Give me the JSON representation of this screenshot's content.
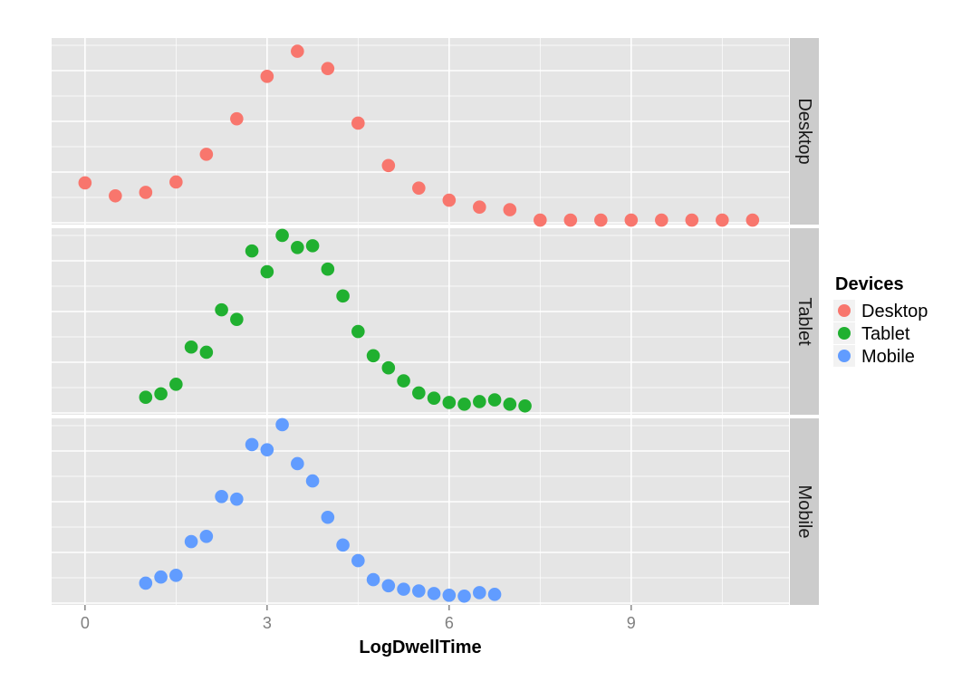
{
  "chart_data": {
    "type": "scatter",
    "facet_by": "device",
    "xlabel": "LogDwellTime",
    "ylabel": "",
    "xlim": [
      -0.55,
      11.6
    ],
    "xticks": [
      0,
      3,
      6,
      9
    ],
    "legend": {
      "title": "Devices",
      "position": "right",
      "entries": [
        "Desktop",
        "Tablet",
        "Mobile"
      ]
    },
    "colors": {
      "Desktop": "#F8766D",
      "Tablet": "#20B030",
      "Mobile": "#619CFF",
      "panel_bg": "#E5E5E5",
      "strip_bg": "#CCCCCC",
      "grid": "#FFFFFF"
    },
    "grid": true,
    "series": [
      {
        "name": "Desktop",
        "ylim": [
          0,
          0.205
        ],
        "x": [
          0,
          0.5,
          1,
          1.5,
          2,
          2.5,
          3,
          3.5,
          4,
          4.5,
          5,
          5.5,
          6,
          6.5,
          7,
          7.5,
          8,
          8.5,
          9,
          9.5,
          10,
          10.5,
          11
        ],
        "y": [
          0.044,
          0.029,
          0.033,
          0.045,
          0.077,
          0.118,
          0.167,
          0.196,
          0.176,
          0.113,
          0.064,
          0.038,
          0.024,
          0.016,
          0.013,
          0.001,
          0.001,
          0.001,
          0.001,
          0.001,
          0.001,
          0.001,
          0.001
        ]
      },
      {
        "name": "Tablet",
        "ylim": [
          0,
          0.205
        ],
        "x": [
          1,
          1.25,
          1.5,
          1.75,
          2,
          2.25,
          2.5,
          2.75,
          3,
          3.25,
          3.5,
          3.75,
          4,
          4.25,
          4.5,
          4.75,
          5,
          5.25,
          5.5,
          5.75,
          6,
          6.25,
          6.5,
          6.75,
          7,
          7.25
        ],
        "y": [
          0.016,
          0.02,
          0.031,
          0.074,
          0.068,
          0.117,
          0.106,
          0.185,
          0.161,
          0.203,
          0.189,
          0.191,
          0.164,
          0.133,
          0.092,
          0.064,
          0.05,
          0.035,
          0.021,
          0.015,
          0.01,
          0.008,
          0.011,
          0.013,
          0.008,
          0.006
        ]
      },
      {
        "name": "Mobile",
        "ylim": [
          0,
          0.205
        ],
        "x": [
          1,
          1.25,
          1.5,
          1.75,
          2,
          2.25,
          2.5,
          2.75,
          3,
          3.25,
          3.5,
          3.75,
          4,
          4.25,
          4.5,
          4.75,
          5,
          5.25,
          5.5,
          5.75,
          6,
          6.25,
          6.5,
          6.75
        ],
        "y": [
          0.021,
          0.028,
          0.03,
          0.069,
          0.075,
          0.121,
          0.118,
          0.181,
          0.175,
          0.204,
          0.159,
          0.139,
          0.097,
          0.065,
          0.047,
          0.025,
          0.018,
          0.014,
          0.012,
          0.009,
          0.007,
          0.006,
          0.01,
          0.008
        ]
      }
    ]
  }
}
